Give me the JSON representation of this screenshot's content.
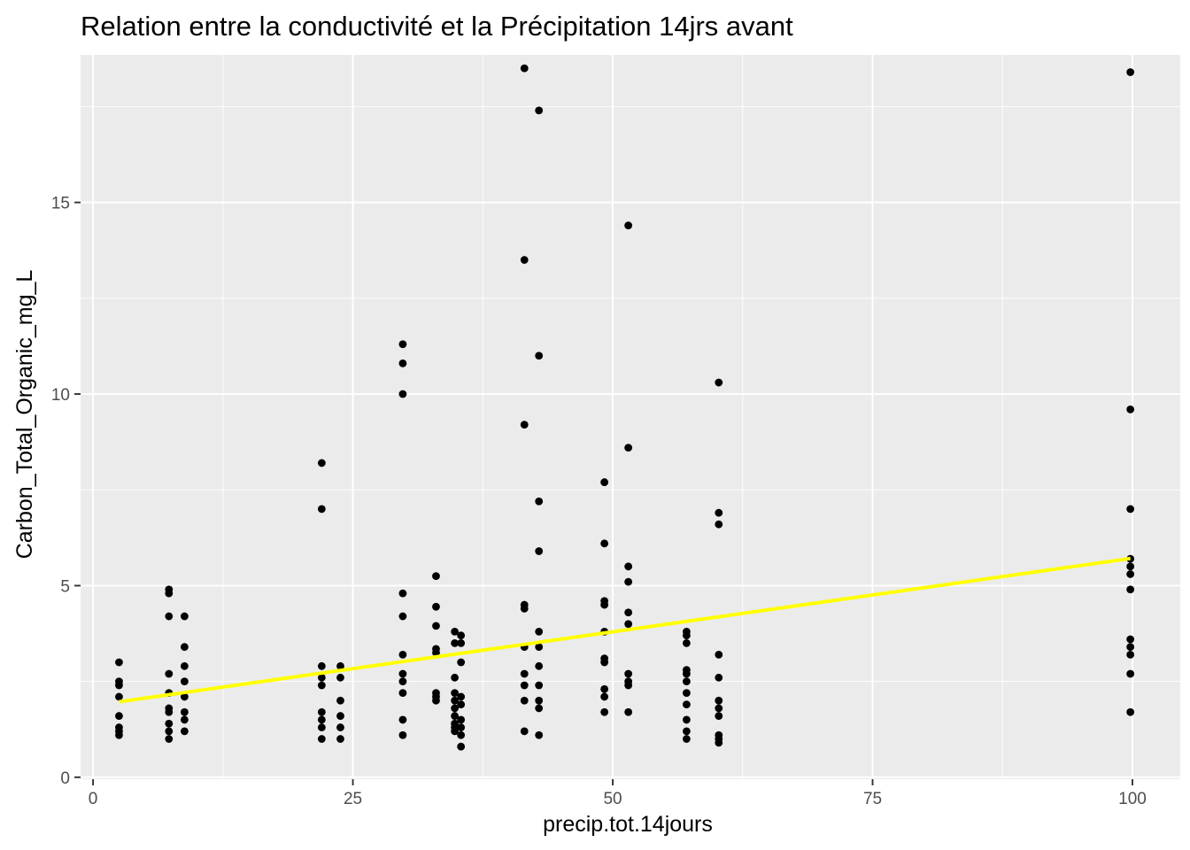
{
  "chart_data": {
    "type": "scatter",
    "title": "Relation entre la conductivité et la Précipitation 14jrs avant",
    "xlabel": "precip.tot.14jours",
    "ylabel": "Carbon_Total_Organic_mg_L",
    "xlim": [
      -1.2,
      104.6
    ],
    "ylim": [
      -0.05,
      18.85
    ],
    "x_ticks": [
      0,
      25,
      50,
      75,
      100
    ],
    "x_tick_labels": [
      "0",
      "25",
      "50",
      "75",
      "100"
    ],
    "y_ticks": [
      0,
      5,
      10,
      15
    ],
    "y_tick_labels": [
      "0",
      "5",
      "10",
      "15"
    ],
    "grid": true,
    "legend": "none",
    "colors": {
      "panel": "#ebebeb",
      "grid": "#ffffff",
      "points": "#000000",
      "trend": "#ffff00"
    },
    "points": [
      [
        2.5,
        3.0
      ],
      [
        2.5,
        2.5
      ],
      [
        2.5,
        2.4
      ],
      [
        2.5,
        2.1
      ],
      [
        2.5,
        1.6
      ],
      [
        2.5,
        1.3
      ],
      [
        2.5,
        1.2
      ],
      [
        2.5,
        1.1
      ],
      [
        7.3,
        4.9
      ],
      [
        7.3,
        4.8
      ],
      [
        7.3,
        4.2
      ],
      [
        7.3,
        2.7
      ],
      [
        7.3,
        2.2
      ],
      [
        7.3,
        1.8
      ],
      [
        7.3,
        1.7
      ],
      [
        7.3,
        1.4
      ],
      [
        7.3,
        1.2
      ],
      [
        7.3,
        1.0
      ],
      [
        8.8,
        4.2
      ],
      [
        8.8,
        3.4
      ],
      [
        8.8,
        2.9
      ],
      [
        8.8,
        2.5
      ],
      [
        8.8,
        2.1
      ],
      [
        8.8,
        1.7
      ],
      [
        8.8,
        1.5
      ],
      [
        8.8,
        1.2
      ],
      [
        22.0,
        8.2
      ],
      [
        22.0,
        7.0
      ],
      [
        22.0,
        2.9
      ],
      [
        22.0,
        2.6
      ],
      [
        22.0,
        2.4
      ],
      [
        22.0,
        1.7
      ],
      [
        22.0,
        1.5
      ],
      [
        22.0,
        1.3
      ],
      [
        22.0,
        1.0
      ],
      [
        23.8,
        2.9
      ],
      [
        23.8,
        2.6
      ],
      [
        23.8,
        2.0
      ],
      [
        23.8,
        1.6
      ],
      [
        23.8,
        1.3
      ],
      [
        23.8,
        1.0
      ],
      [
        29.8,
        11.3
      ],
      [
        29.8,
        10.8
      ],
      [
        29.8,
        10.0
      ],
      [
        29.8,
        4.8
      ],
      [
        29.8,
        4.2
      ],
      [
        29.8,
        3.2
      ],
      [
        29.8,
        2.7
      ],
      [
        29.8,
        2.5
      ],
      [
        29.8,
        2.2
      ],
      [
        29.8,
        1.5
      ],
      [
        29.8,
        1.1
      ],
      [
        33.0,
        5.25
      ],
      [
        33.0,
        4.45
      ],
      [
        33.0,
        3.95
      ],
      [
        33.0,
        3.35
      ],
      [
        33.0,
        3.25
      ],
      [
        33.0,
        2.2
      ],
      [
        33.0,
        2.1
      ],
      [
        33.0,
        2.0
      ],
      [
        34.8,
        3.8
      ],
      [
        34.8,
        3.5
      ],
      [
        34.8,
        2.6
      ],
      [
        34.8,
        2.2
      ],
      [
        34.8,
        2.0
      ],
      [
        34.8,
        1.8
      ],
      [
        34.8,
        1.6
      ],
      [
        34.8,
        1.4
      ],
      [
        34.8,
        1.3
      ],
      [
        34.8,
        1.2
      ],
      [
        35.4,
        3.7
      ],
      [
        35.4,
        3.5
      ],
      [
        35.4,
        3.0
      ],
      [
        35.4,
        2.1
      ],
      [
        35.4,
        1.9
      ],
      [
        35.4,
        1.5
      ],
      [
        35.4,
        1.3
      ],
      [
        35.4,
        1.1
      ],
      [
        35.4,
        0.8
      ],
      [
        41.5,
        18.5
      ],
      [
        41.5,
        13.5
      ],
      [
        41.5,
        9.2
      ],
      [
        41.5,
        4.5
      ],
      [
        41.5,
        4.4
      ],
      [
        41.5,
        3.4
      ],
      [
        41.5,
        2.7
      ],
      [
        41.5,
        2.4
      ],
      [
        41.5,
        2.0
      ],
      [
        41.5,
        1.2
      ],
      [
        42.9,
        17.4
      ],
      [
        42.9,
        11.0
      ],
      [
        42.9,
        7.2
      ],
      [
        42.9,
        5.9
      ],
      [
        42.9,
        3.8
      ],
      [
        42.9,
        3.4
      ],
      [
        42.9,
        2.9
      ],
      [
        42.9,
        2.4
      ],
      [
        42.9,
        2.0
      ],
      [
        42.9,
        1.8
      ],
      [
        42.9,
        1.1
      ],
      [
        49.2,
        7.7
      ],
      [
        49.2,
        6.1
      ],
      [
        49.2,
        4.6
      ],
      [
        49.2,
        4.5
      ],
      [
        49.2,
        3.8
      ],
      [
        49.2,
        3.1
      ],
      [
        49.2,
        3.0
      ],
      [
        49.2,
        2.3
      ],
      [
        49.2,
        2.1
      ],
      [
        49.2,
        1.7
      ],
      [
        51.5,
        14.4
      ],
      [
        51.5,
        8.6
      ],
      [
        51.5,
        5.5
      ],
      [
        51.5,
        5.1
      ],
      [
        51.5,
        4.3
      ],
      [
        51.5,
        4.0
      ],
      [
        51.5,
        2.7
      ],
      [
        51.5,
        2.5
      ],
      [
        51.5,
        2.4
      ],
      [
        51.5,
        1.7
      ],
      [
        57.1,
        3.8
      ],
      [
        57.1,
        3.7
      ],
      [
        57.1,
        3.5
      ],
      [
        57.1,
        2.8
      ],
      [
        57.1,
        2.7
      ],
      [
        57.1,
        2.5
      ],
      [
        57.1,
        2.2
      ],
      [
        57.1,
        1.9
      ],
      [
        57.1,
        1.5
      ],
      [
        57.1,
        1.2
      ],
      [
        57.1,
        1.0
      ],
      [
        60.2,
        10.3
      ],
      [
        60.2,
        6.9
      ],
      [
        60.2,
        6.6
      ],
      [
        60.2,
        3.2
      ],
      [
        60.2,
        2.6
      ],
      [
        60.2,
        2.0
      ],
      [
        60.2,
        1.8
      ],
      [
        60.2,
        1.6
      ],
      [
        60.2,
        1.1
      ],
      [
        60.2,
        1.0
      ],
      [
        60.2,
        0.9
      ],
      [
        99.8,
        18.4
      ],
      [
        99.8,
        9.6
      ],
      [
        99.8,
        7.0
      ],
      [
        99.8,
        5.7
      ],
      [
        99.8,
        5.5
      ],
      [
        99.8,
        5.3
      ],
      [
        99.8,
        4.9
      ],
      [
        99.8,
        3.6
      ],
      [
        99.8,
        3.4
      ],
      [
        99.8,
        3.2
      ],
      [
        99.8,
        2.7
      ],
      [
        99.8,
        1.7
      ]
    ],
    "trend_line": {
      "x": [
        2.5,
        99.8
      ],
      "y": [
        1.97,
        5.71
      ]
    }
  }
}
